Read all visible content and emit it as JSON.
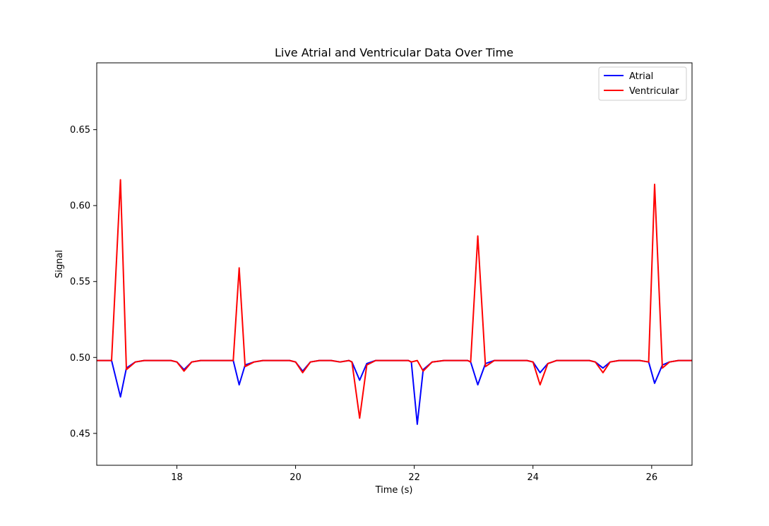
{
  "chart_data": {
    "type": "line",
    "title": "Live Atrial and Ventricular Data Over Time",
    "xlabel": "Time (s)",
    "ylabel": "Signal",
    "xlim": [
      16.65,
      26.68
    ],
    "ylim": [
      0.429,
      0.694
    ],
    "xticks": [
      18,
      20,
      22,
      24,
      26
    ],
    "xtick_labels": [
      "18",
      "20",
      "22",
      "24",
      "26"
    ],
    "yticks": [
      0.45,
      0.5,
      0.55,
      0.6,
      0.65
    ],
    "ytick_labels": [
      "0.45",
      "0.50",
      "0.55",
      "0.60",
      "0.65"
    ],
    "grid": false,
    "legend_position": "upper right",
    "x": [
      16.65,
      16.9,
      17.05,
      17.15,
      17.3,
      17.45,
      17.6,
      17.75,
      17.9,
      18.0,
      18.12,
      18.25,
      18.4,
      18.6,
      18.75,
      18.9,
      18.95,
      19.05,
      19.15,
      19.3,
      19.45,
      19.6,
      19.75,
      19.9,
      20.0,
      20.12,
      20.25,
      20.4,
      20.6,
      20.75,
      20.9,
      20.95,
      21.08,
      21.2,
      21.35,
      21.5,
      21.7,
      21.9,
      21.95,
      22.05,
      22.15,
      22.3,
      22.5,
      22.7,
      22.9,
      22.95,
      23.07,
      23.2,
      23.35,
      23.5,
      23.7,
      23.9,
      24.0,
      24.12,
      24.25,
      24.4,
      24.6,
      24.8,
      24.95,
      25.05,
      25.18,
      25.3,
      25.45,
      25.6,
      25.8,
      25.95,
      26.05,
      26.18,
      26.3,
      26.45,
      26.68
    ],
    "series": [
      {
        "name": "Atrial",
        "color": "#0000ff",
        "values": [
          0.498,
          0.498,
          0.474,
          0.493,
          0.497,
          0.498,
          0.498,
          0.498,
          0.498,
          0.497,
          0.492,
          0.497,
          0.498,
          0.498,
          0.498,
          0.498,
          0.498,
          0.482,
          0.495,
          0.497,
          0.498,
          0.498,
          0.498,
          0.498,
          0.497,
          0.491,
          0.497,
          0.498,
          0.498,
          0.497,
          0.498,
          0.497,
          0.485,
          0.496,
          0.498,
          0.498,
          0.498,
          0.498,
          0.497,
          0.456,
          0.492,
          0.497,
          0.498,
          0.498,
          0.498,
          0.497,
          0.482,
          0.496,
          0.498,
          0.498,
          0.498,
          0.498,
          0.497,
          0.49,
          0.496,
          0.498,
          0.498,
          0.498,
          0.498,
          0.497,
          0.493,
          0.497,
          0.498,
          0.498,
          0.498,
          0.497,
          0.483,
          0.495,
          0.497,
          0.498,
          0.498
        ]
      },
      {
        "name": "Ventricular",
        "color": "#ff0000",
        "values": [
          0.498,
          0.498,
          0.617,
          0.492,
          0.497,
          0.498,
          0.498,
          0.498,
          0.498,
          0.497,
          0.491,
          0.497,
          0.498,
          0.498,
          0.498,
          0.498,
          0.498,
          0.559,
          0.494,
          0.497,
          0.498,
          0.498,
          0.498,
          0.498,
          0.497,
          0.49,
          0.497,
          0.498,
          0.498,
          0.497,
          0.498,
          0.497,
          0.46,
          0.495,
          0.498,
          0.498,
          0.498,
          0.498,
          0.497,
          0.498,
          0.491,
          0.497,
          0.498,
          0.498,
          0.498,
          0.497,
          0.58,
          0.494,
          0.498,
          0.498,
          0.498,
          0.498,
          0.497,
          0.482,
          0.496,
          0.498,
          0.498,
          0.498,
          0.498,
          0.497,
          0.49,
          0.497,
          0.498,
          0.498,
          0.498,
          0.497,
          0.614,
          0.493,
          0.497,
          0.498,
          0.498
        ]
      }
    ]
  }
}
